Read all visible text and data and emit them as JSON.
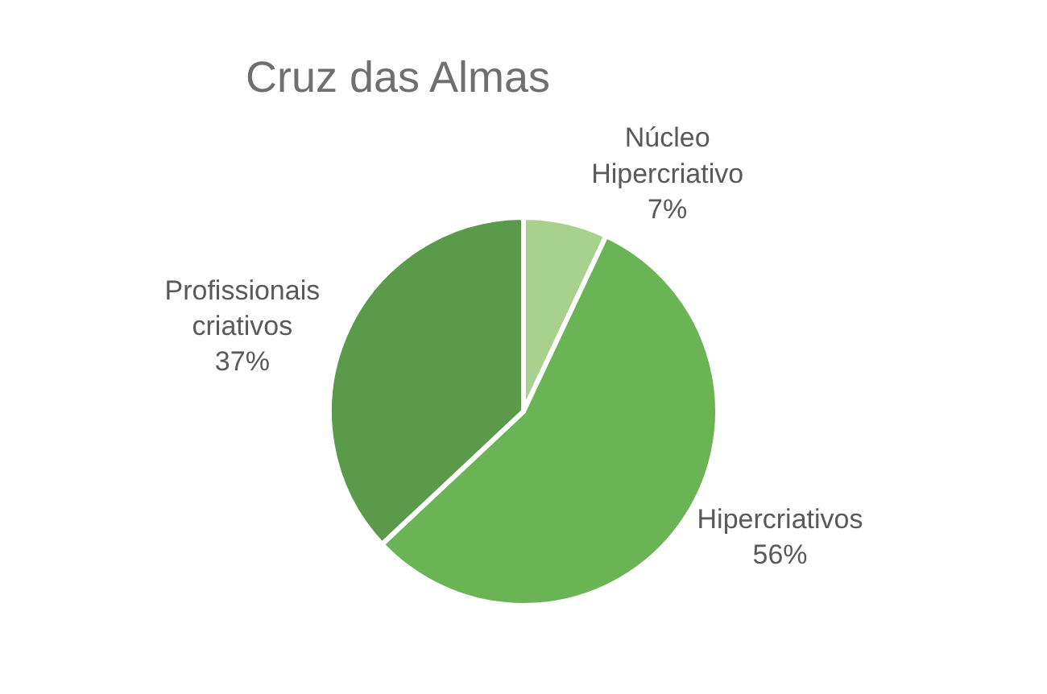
{
  "chart_data": {
    "type": "pie",
    "title": "Cruz das Almas",
    "categories": [
      "Núcleo Hipercriativo",
      "Hipercriativos",
      "Profissionais criativos"
    ],
    "values": [
      7,
      56,
      37
    ],
    "colors": [
      "#a9d18e",
      "#6ab456",
      "#5b9a4b"
    ],
    "value_labels": [
      "7%",
      "56%",
      "37%"
    ],
    "legend": false
  }
}
